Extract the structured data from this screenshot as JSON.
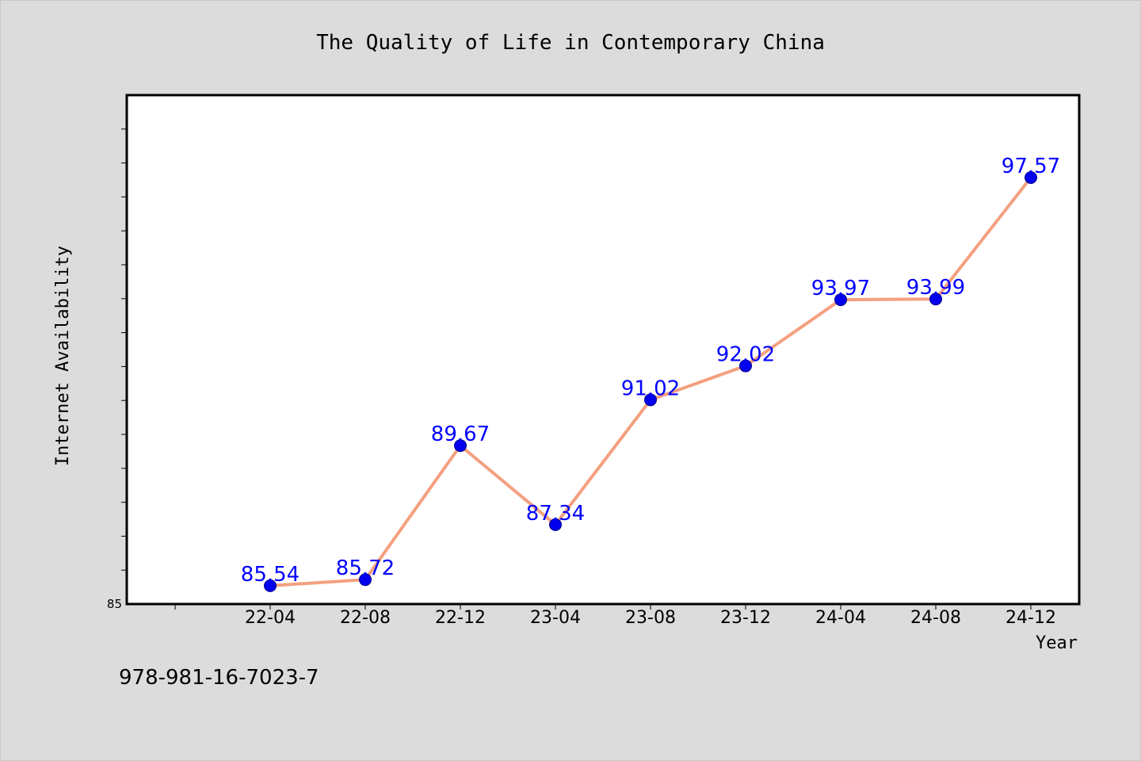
{
  "chart_data": {
    "type": "line",
    "title": "The Quality of Life in Contemporary China",
    "xlabel": "Year",
    "ylabel": "Internet Availability",
    "categories": [
      "22-04",
      "22-08",
      "22-12",
      "23-04",
      "23-08",
      "23-12",
      "24-04",
      "24-08",
      "24-12"
    ],
    "series": [
      {
        "values": [
          85.54,
          85.72,
          89.67,
          87.34,
          91.02,
          92.02,
          93.97,
          93.99,
          97.57
        ],
        "labels": [
          "85.54",
          "85.72",
          "89.67",
          "87.34",
          "91.02",
          "92.02",
          "93.97",
          "93.99",
          "97.57"
        ]
      }
    ],
    "ylim": [
      85,
      100
    ],
    "y_tick_labels": [
      "85"
    ],
    "grid": false,
    "line_color": "#f4a07f",
    "marker_color": "#0000ee",
    "label_color": "#0000ff"
  },
  "footer": {
    "isbn": "978-981-16-7023-7"
  }
}
